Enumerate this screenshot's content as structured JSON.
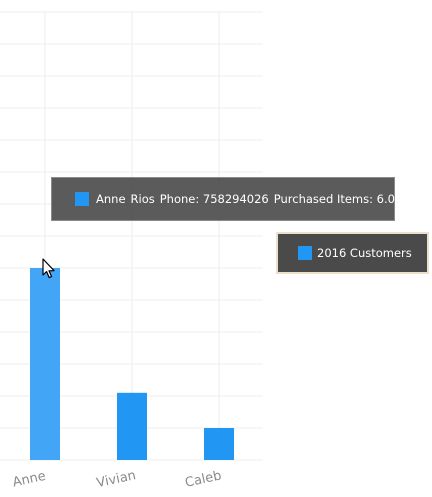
{
  "chart_data": {
    "type": "bar",
    "categories": [
      "Anne",
      "Vivian",
      "Caleb"
    ],
    "series": [
      {
        "name": "2016 Customers",
        "values": [
          6.0,
          2.1,
          1.0
        ]
      }
    ],
    "ylim": [
      0,
      14
    ],
    "grid": true,
    "color": "#2196f3",
    "highlight_color": "#42a5f5",
    "highlighted_index": 0,
    "legend_position": "right"
  },
  "tooltip": {
    "name": "Anne",
    "surname": "Rios",
    "phone": "Phone: 758294026",
    "purchased": "Purchased Items: 6.00"
  },
  "legend": {
    "label": "2016 Customers"
  },
  "cursor_icon": "arrow-pointer"
}
